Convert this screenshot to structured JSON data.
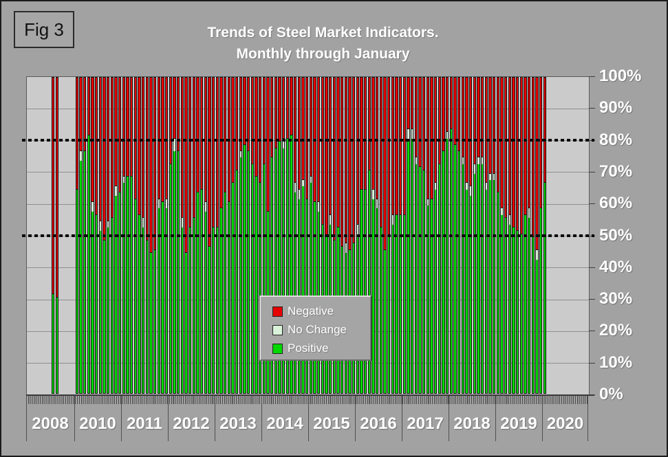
{
  "figure_label": "Fig 3",
  "title_line1": "Trends of Steel Market Indicators.",
  "title_line2": "Monthly through January",
  "chart_data": {
    "type": "bar",
    "stacking": "100_percent_stacked",
    "title": "Trends of Steel Market Indicators. Monthly through January",
    "ylim": [
      0,
      100
    ],
    "grid": "horizontal_every_10_percent",
    "reference_lines_percent": [
      80,
      50
    ],
    "legend_position": "center",
    "y_tick_labels": [
      "100%",
      "90%",
      "80%",
      "70%",
      "60%",
      "50%",
      "40%",
      "30%",
      "20%",
      "10%",
      "0%"
    ],
    "colors": {
      "negative": "#e60000",
      "no_change": "#d9f2d9",
      "positive": "#00d800",
      "plot_bg": "#cbcbcb",
      "outer_bg": "#a2a2a2"
    },
    "legend": [
      {
        "label": "Negative",
        "color": "#e60000"
      },
      {
        "label": "No Change",
        "color": "#d9f2d9"
      },
      {
        "label": "Positive",
        "color": "#00d800"
      }
    ],
    "note": "bars are monthly; each bar = positive% + no_change% + negative% = 100; 2009 has no data and no axis section",
    "x_sections": [
      {
        "year": "2008",
        "start_slot": 6,
        "bars": [
          {
            "positive": 31,
            "no_change": 0
          },
          {
            "positive": 30,
            "no_change": 0
          }
        ]
      },
      {
        "year": "2010",
        "start_slot": 0,
        "bars": [
          {
            "positive": 64,
            "no_change": 0
          },
          {
            "positive": 73,
            "no_change": 3
          },
          {
            "positive": 76,
            "no_change": 0
          },
          {
            "positive": 81,
            "no_change": 0
          },
          {
            "positive": 57,
            "no_change": 3
          },
          {
            "positive": 56,
            "no_change": 0
          },
          {
            "positive": 51,
            "no_change": 3
          },
          {
            "positive": 48,
            "no_change": 0
          },
          {
            "positive": 52,
            "no_change": 2
          },
          {
            "positive": 55,
            "no_change": 0
          },
          {
            "positive": 62,
            "no_change": 3
          },
          {
            "positive": 63,
            "no_change": 0
          }
        ]
      },
      {
        "year": "2011",
        "start_slot": 0,
        "bars": [
          {
            "positive": 66,
            "no_change": 2
          },
          {
            "positive": 68,
            "no_change": 0
          },
          {
            "positive": 68,
            "no_change": 0
          },
          {
            "positive": 61,
            "no_change": 0
          },
          {
            "positive": 56,
            "no_change": 0
          },
          {
            "positive": 52,
            "no_change": 3
          },
          {
            "positive": 48,
            "no_change": 0
          },
          {
            "positive": 44,
            "no_change": 0
          },
          {
            "positive": 45,
            "no_change": 0
          },
          {
            "positive": 58,
            "no_change": 3
          },
          {
            "positive": 60,
            "no_change": 0
          },
          {
            "positive": 58,
            "no_change": 3
          }
        ]
      },
      {
        "year": "2012",
        "start_slot": 0,
        "bars": [
          {
            "positive": 72,
            "no_change": 0
          },
          {
            "positive": 76,
            "no_change": 4
          },
          {
            "positive": 76,
            "no_change": 0
          },
          {
            "positive": 52,
            "no_change": 3
          },
          {
            "positive": 44,
            "no_change": 0
          },
          {
            "positive": 52,
            "no_change": 0
          },
          {
            "positive": 55,
            "no_change": 0
          },
          {
            "positive": 63,
            "no_change": 0
          },
          {
            "positive": 64,
            "no_change": 0
          },
          {
            "positive": 57,
            "no_change": 3
          },
          {
            "positive": 46,
            "no_change": 0
          },
          {
            "positive": 52,
            "no_change": 0
          }
        ]
      },
      {
        "year": "2013",
        "start_slot": 0,
        "bars": [
          {
            "positive": 52,
            "no_change": 0
          },
          {
            "positive": 58,
            "no_change": 0
          },
          {
            "positive": 63,
            "no_change": 0
          },
          {
            "positive": 60,
            "no_change": 0
          },
          {
            "positive": 66,
            "no_change": 0
          },
          {
            "positive": 70,
            "no_change": 0
          },
          {
            "positive": 74,
            "no_change": 2
          },
          {
            "positive": 78,
            "no_change": 0
          },
          {
            "positive": 76,
            "no_change": 0
          },
          {
            "positive": 72,
            "no_change": 0
          },
          {
            "positive": 68,
            "no_change": 0
          },
          {
            "positive": 66,
            "no_change": 0
          }
        ]
      },
      {
        "year": "2014",
        "start_slot": 0,
        "bars": [
          {
            "positive": 72,
            "no_change": 0
          },
          {
            "positive": 57,
            "no_change": 0
          },
          {
            "positive": 74,
            "no_change": 0
          },
          {
            "positive": 77,
            "no_change": 0
          },
          {
            "positive": 79,
            "no_change": 0
          },
          {
            "positive": 77,
            "no_change": 3
          },
          {
            "positive": 80,
            "no_change": 0
          },
          {
            "positive": 81,
            "no_change": 0
          },
          {
            "positive": 63,
            "no_change": 3
          },
          {
            "positive": 61,
            "no_change": 3
          },
          {
            "positive": 65,
            "no_change": 2
          },
          {
            "positive": 61,
            "no_change": 0
          }
        ]
      },
      {
        "year": "2015",
        "start_slot": 0,
        "bars": [
          {
            "positive": 66,
            "no_change": 2
          },
          {
            "positive": 60,
            "no_change": 0
          },
          {
            "positive": 57,
            "no_change": 3
          },
          {
            "positive": 53,
            "no_change": 0
          },
          {
            "positive": 49,
            "no_change": 0
          },
          {
            "positive": 53,
            "no_change": 3
          },
          {
            "positive": 48,
            "no_change": 0
          },
          {
            "positive": 52,
            "no_change": 0
          },
          {
            "positive": 46,
            "no_change": 0
          },
          {
            "positive": 44,
            "no_change": 3
          },
          {
            "positive": 45,
            "no_change": 0
          },
          {
            "positive": 47,
            "no_change": 0
          }
        ]
      },
      {
        "year": "2016",
        "start_slot": 0,
        "bars": [
          {
            "positive": 50,
            "no_change": 3
          },
          {
            "positive": 64,
            "no_change": 0
          },
          {
            "positive": 64,
            "no_change": 0
          },
          {
            "positive": 70,
            "no_change": 0
          },
          {
            "positive": 61,
            "no_change": 3
          },
          {
            "positive": 58,
            "no_change": 3
          },
          {
            "positive": 52,
            "no_change": 0
          },
          {
            "positive": 45,
            "no_change": 0
          },
          {
            "positive": 49,
            "no_change": 0
          },
          {
            "positive": 53,
            "no_change": 3
          },
          {
            "positive": 56,
            "no_change": 0
          },
          {
            "positive": 56,
            "no_change": 0
          }
        ]
      },
      {
        "year": "2017",
        "start_slot": 0,
        "bars": [
          {
            "positive": 56,
            "no_change": 0
          },
          {
            "positive": 80,
            "no_change": 3
          },
          {
            "positive": 80,
            "no_change": 3
          },
          {
            "positive": 72,
            "no_change": 2
          },
          {
            "positive": 71,
            "no_change": 0
          },
          {
            "positive": 70,
            "no_change": 0
          },
          {
            "positive": 59,
            "no_change": 2
          },
          {
            "positive": 61,
            "no_change": 0
          },
          {
            "positive": 64,
            "no_change": 2
          },
          {
            "positive": 72,
            "no_change": 0
          },
          {
            "positive": 76,
            "no_change": 0
          },
          {
            "positive": 80,
            "no_change": 2
          }
        ]
      },
      {
        "year": "2018",
        "start_slot": 0,
        "bars": [
          {
            "positive": 83,
            "no_change": 0
          },
          {
            "positive": 78,
            "no_change": 0
          },
          {
            "positive": 76,
            "no_change": 0
          },
          {
            "positive": 72,
            "no_change": 2
          },
          {
            "positive": 64,
            "no_change": 2
          },
          {
            "positive": 62,
            "no_change": 3
          },
          {
            "positive": 69,
            "no_change": 3
          },
          {
            "positive": 72,
            "no_change": 2
          },
          {
            "positive": 72,
            "no_change": 2
          },
          {
            "positive": 64,
            "no_change": 2
          },
          {
            "positive": 67,
            "no_change": 2
          },
          {
            "positive": 67,
            "no_change": 2
          }
        ]
      },
      {
        "year": "2019",
        "start_slot": 0,
        "bars": [
          {
            "positive": 63,
            "no_change": 0
          },
          {
            "positive": 56,
            "no_change": 2
          },
          {
            "positive": 55,
            "no_change": 0
          },
          {
            "positive": 53,
            "no_change": 3
          },
          {
            "positive": 52,
            "no_change": 0
          },
          {
            "positive": 51,
            "no_change": 0
          },
          {
            "positive": 50,
            "no_change": 0
          },
          {
            "positive": 56,
            "no_change": 0
          },
          {
            "positive": 55,
            "no_change": 3
          },
          {
            "positive": 49,
            "no_change": 0
          },
          {
            "positive": 42,
            "no_change": 3
          },
          {
            "positive": 58,
            "no_change": 0
          }
        ]
      },
      {
        "year": "2020",
        "start_slot": 0,
        "bars": [
          {
            "positive": 66,
            "no_change": 0
          }
        ]
      }
    ]
  }
}
